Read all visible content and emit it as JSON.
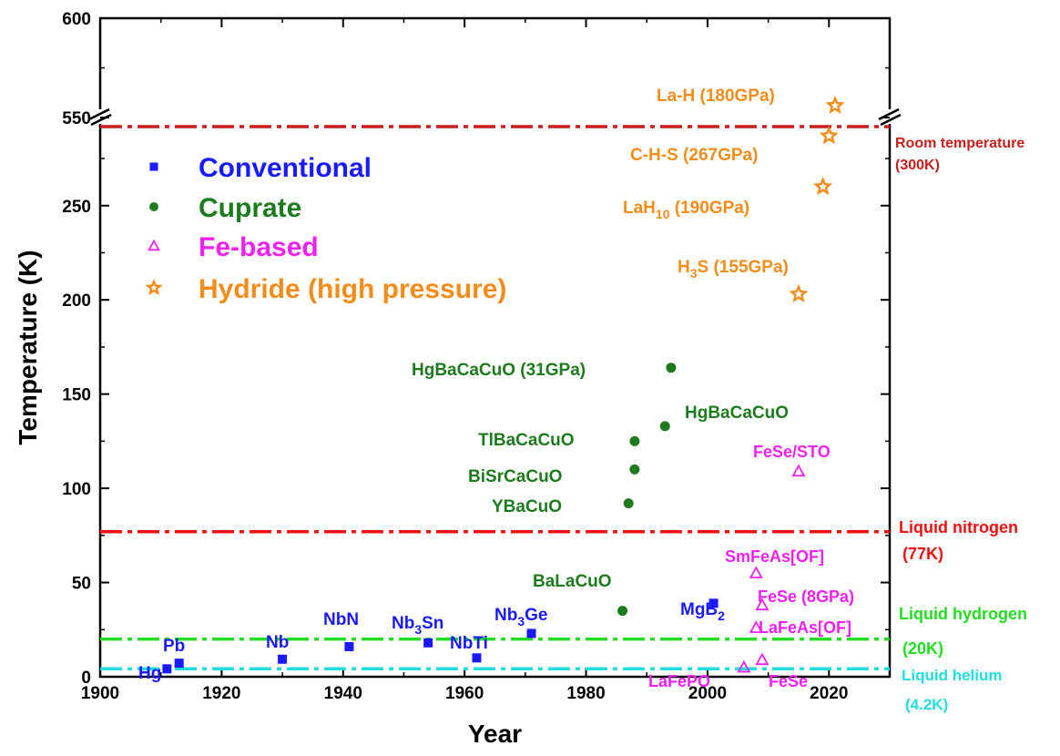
{
  "chart_data": {
    "type": "scatter",
    "xlabel": "Year",
    "ylabel": "Temperature (K)",
    "xlim": [
      1900,
      2030
    ],
    "ylim_lower": [
      0,
      290
    ],
    "ylim_upper": [
      545,
      600
    ],
    "axis_break": "between 290 K and 545 K",
    "x_ticks": [
      1900,
      1920,
      1940,
      1960,
      1980,
      2000,
      2020
    ],
    "y_ticks_lower": [
      0,
      50,
      100,
      150,
      200,
      250
    ],
    "y_ticks_upper": [
      550,
      600
    ],
    "legend": {
      "placement": "upper-left",
      "entries": [
        {
          "label": "Conventional",
          "marker": "square",
          "color": "#1a1aff"
        },
        {
          "label": "Cuprate",
          "marker": "circle",
          "color": "#1e7a1e"
        },
        {
          "label": "Fe-based",
          "marker": "triangle",
          "color": "#ee22ee"
        },
        {
          "label": "Hydride (high pressure)",
          "marker": "star",
          "color": "#f28c1a"
        }
      ]
    },
    "series": [
      {
        "name": "Conventional",
        "marker": "square",
        "color": "#1a1aff",
        "points": [
          {
            "x": 1911,
            "y": 4.2,
            "label": "Hg"
          },
          {
            "x": 1913,
            "y": 7.2,
            "label": "Pb"
          },
          {
            "x": 1930,
            "y": 9.3,
            "label": "Nb"
          },
          {
            "x": 1941,
            "y": 16,
            "label": "NbN"
          },
          {
            "x": 1954,
            "y": 18,
            "label": "Nb",
            "sub": "3",
            "label_tail": "Sn"
          },
          {
            "x": 1962,
            "y": 10,
            "label": "NbTi"
          },
          {
            "x": 1971,
            "y": 23,
            "label": "Nb",
            "sub": "3",
            "label_tail": "Ge"
          },
          {
            "x": 2001,
            "y": 39,
            "label": "MgB",
            "sub": "2",
            "label_tail": ""
          }
        ]
      },
      {
        "name": "Cuprate",
        "marker": "circle",
        "color": "#1e7a1e",
        "points": [
          {
            "x": 1986,
            "y": 35,
            "label": "BaLaCuO"
          },
          {
            "x": 1987,
            "y": 92,
            "label": "YBaCuO"
          },
          {
            "x": 1988,
            "y": 110,
            "label": "BiSrCaCuO"
          },
          {
            "x": 1988,
            "y": 125,
            "label": "TlBaCaCuO"
          },
          {
            "x": 1993,
            "y": 133,
            "label": "HgBaCaCuO"
          },
          {
            "x": 1994,
            "y": 164,
            "label": "HgBaCaCuO (31GPa)"
          }
        ]
      },
      {
        "name": "Fe-based",
        "marker": "triangle",
        "color": "#ee22ee",
        "points": [
          {
            "x": 2006,
            "y": 5,
            "label": "LaFePO"
          },
          {
            "x": 2008,
            "y": 26,
            "label": "LaFeAs[OF]"
          },
          {
            "x": 2008,
            "y": 55,
            "label": "SmFeAs[OF]"
          },
          {
            "x": 2009,
            "y": 9,
            "label": "FeSe"
          },
          {
            "x": 2009,
            "y": 38,
            "label": "FeSe (8GPa)"
          },
          {
            "x": 2015,
            "y": 109,
            "label": "FeSe/STO"
          }
        ]
      },
      {
        "name": "Hydride (high pressure)",
        "marker": "star",
        "color": "#f28c1a",
        "points": [
          {
            "x": 2015,
            "y": 203,
            "label": "H",
            "sub": "3",
            "label_tail": "S (155GPa)"
          },
          {
            "x": 2019,
            "y": 260,
            "label": "LaH",
            "sub": "10",
            "label_tail": "  (190GPa)"
          },
          {
            "x": 2020,
            "y": 287,
            "label": "C-H-S (267GPa)"
          },
          {
            "x": 2021,
            "y": 556,
            "label": "La-H (180GPa)"
          }
        ]
      }
    ],
    "reference_lines": [
      {
        "y": 300,
        "lines": [
          "Room temperature",
          "(300K)"
        ],
        "color": "#c81e1e"
      },
      {
        "y": 77,
        "lines": [
          "Liquid nitrogen",
          "(77K)"
        ],
        "color": "#ee1111"
      },
      {
        "y": 20,
        "lines": [
          "Liquid hydrogen",
          "(20K)"
        ],
        "color": "#22dd22"
      },
      {
        "y": 4.2,
        "lines": [
          "Liquid helium",
          "(4.2K)"
        ],
        "color": "#22dddd"
      }
    ]
  }
}
